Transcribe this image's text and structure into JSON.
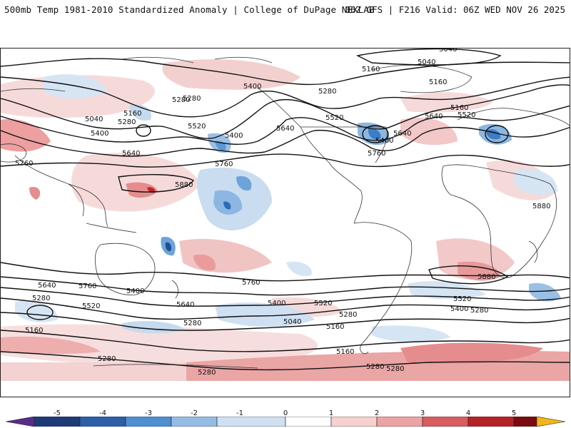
{
  "header": {
    "title": "500mb Temp 1981-2010 Standardized Anomaly | College of DuPage NEXLAB",
    "run_info": "06Z GFS | F216 Valid: 06Z WED NOV 26 2025"
  },
  "map": {
    "contour_labels": [
      "5040",
      "5040",
      "5160",
      "5400",
      "5280",
      "5160",
      "5520",
      "5280",
      "5640",
      "5520",
      "5160",
      "5040",
      "5160",
      "5280",
      "5400",
      "5640",
      "5520",
      "5400",
      "5400",
      "5280",
      "5640",
      "5760",
      "5760",
      "5640",
      "5760",
      "5880",
      "5880",
      "5640",
      "5760",
      "5400",
      "5280",
      "5520",
      "5160",
      "5280",
      "5640",
      "5760",
      "5400",
      "5520",
      "5040",
      "5160",
      "5280",
      "5280",
      "5880",
      "5520",
      "5400",
      "5280",
      "5160",
      "5280",
      "5280",
      "5280"
    ],
    "colors": {
      "positive_weak": "#f4d2d2",
      "positive_mid": "#e89a9a",
      "positive_strong": "#c0282d",
      "negative_weak": "#d4e3f2",
      "negative_mid": "#8fb8e2",
      "negative_strong": "#2a6db8",
      "contour": "#111111",
      "coast": "#333333"
    }
  },
  "colorbar": {
    "ticks": [
      "-5",
      "-4",
      "-3",
      "-2",
      "-1",
      "0",
      "1",
      "2",
      "3",
      "4",
      "5"
    ],
    "colors": [
      "#5a2c8a",
      "#1f3a78",
      "#2d5fa8",
      "#4d8fd0",
      "#94bde5",
      "#cfe0f2",
      "#ffffff",
      "#f7d0d0",
      "#eba3a3",
      "#d75d5e",
      "#b52226",
      "#7a0b10",
      "#f2b51d"
    ]
  }
}
